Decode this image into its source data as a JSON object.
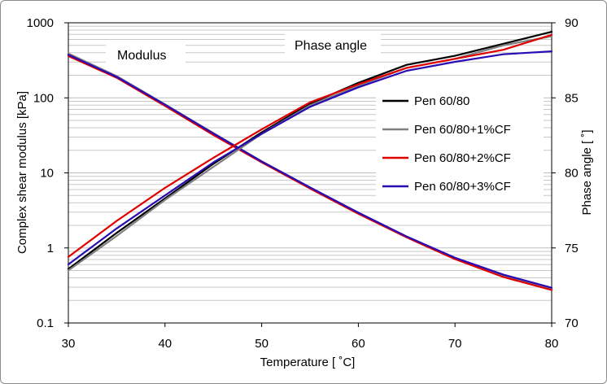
{
  "chart_data": {
    "type": "line",
    "title": "",
    "xlabel": "Temperature [ ˚C]",
    "ylabel_left": "Complex shear modulus [kPa]",
    "ylabel_right": "Phase angle [ ˚]",
    "xlim": [
      30,
      80
    ],
    "ylim_left": [
      0.1,
      1000
    ],
    "ylim_right": [
      70,
      90
    ],
    "left_scale": "log",
    "right_scale": "linear",
    "x_ticks": [
      "30",
      "40",
      "50",
      "60",
      "70",
      "80"
    ],
    "y_left_ticks": [
      "0.1",
      "1",
      "10",
      "100",
      "1000"
    ],
    "y_right_ticks": [
      "70",
      "75",
      "80",
      "85",
      "90"
    ],
    "grid": "horizontal minor log gridlines",
    "legend_position": "right-center",
    "annotations": [
      "Modulus",
      "Phase angle"
    ],
    "x": [
      30,
      35,
      40,
      45,
      50,
      55,
      60,
      65,
      70,
      75,
      80
    ],
    "series": [
      {
        "name": "Pen 60/80",
        "color": "#000000",
        "axis": "left",
        "group": "modulus",
        "values": [
          380,
          190,
          80,
          33,
          14,
          6.3,
          2.9,
          1.4,
          0.72,
          0.42,
          0.28
        ]
      },
      {
        "name": "Pen 60/80+1%CF",
        "color": "#808080",
        "axis": "left",
        "group": "modulus",
        "values": [
          390,
          195,
          82,
          34,
          14.3,
          6.4,
          2.95,
          1.42,
          0.73,
          0.43,
          0.285
        ]
      },
      {
        "name": "Pen 60/80+2%CF",
        "color": "#e00000",
        "axis": "left",
        "group": "modulus",
        "values": [
          360,
          185,
          78,
          32,
          13.8,
          6.2,
          2.85,
          1.38,
          0.71,
          0.41,
          0.275
        ]
      },
      {
        "name": "Pen 60/80+3%CF",
        "color": "#2a0cb4",
        "axis": "left",
        "group": "modulus",
        "values": [
          375,
          190,
          81,
          33.5,
          14.2,
          6.4,
          2.95,
          1.42,
          0.74,
          0.44,
          0.295
        ]
      },
      {
        "name": "Pen 60/80",
        "color": "#000000",
        "axis": "right",
        "group": "phase",
        "values": [
          73.6,
          76.0,
          78.3,
          80.6,
          82.7,
          84.6,
          86.0,
          87.2,
          87.8,
          88.6,
          89.4
        ]
      },
      {
        "name": "Pen 60/80+1%CF",
        "color": "#808080",
        "axis": "right",
        "group": "phase",
        "values": [
          73.5,
          75.8,
          78.2,
          80.4,
          82.6,
          84.5,
          85.8,
          87.0,
          87.6,
          88.5,
          89.1
        ]
      },
      {
        "name": "Pen 60/80+2%CF",
        "color": "#e00000",
        "axis": "right",
        "group": "phase",
        "values": [
          74.4,
          76.8,
          79.0,
          81.0,
          82.9,
          84.7,
          85.9,
          87.0,
          87.6,
          88.2,
          89.2
        ]
      },
      {
        "name": "Pen 60/80+3%CF",
        "color": "#2a0cb4",
        "axis": "right",
        "group": "phase",
        "values": [
          73.9,
          76.3,
          78.5,
          80.7,
          82.6,
          84.4,
          85.7,
          86.8,
          87.4,
          87.9,
          88.1
        ]
      }
    ],
    "legend": [
      "Pen 60/80",
      "Pen 60/80+1%CF",
      "Pen 60/80+2%CF",
      "Pen 60/80+3%CF"
    ]
  }
}
